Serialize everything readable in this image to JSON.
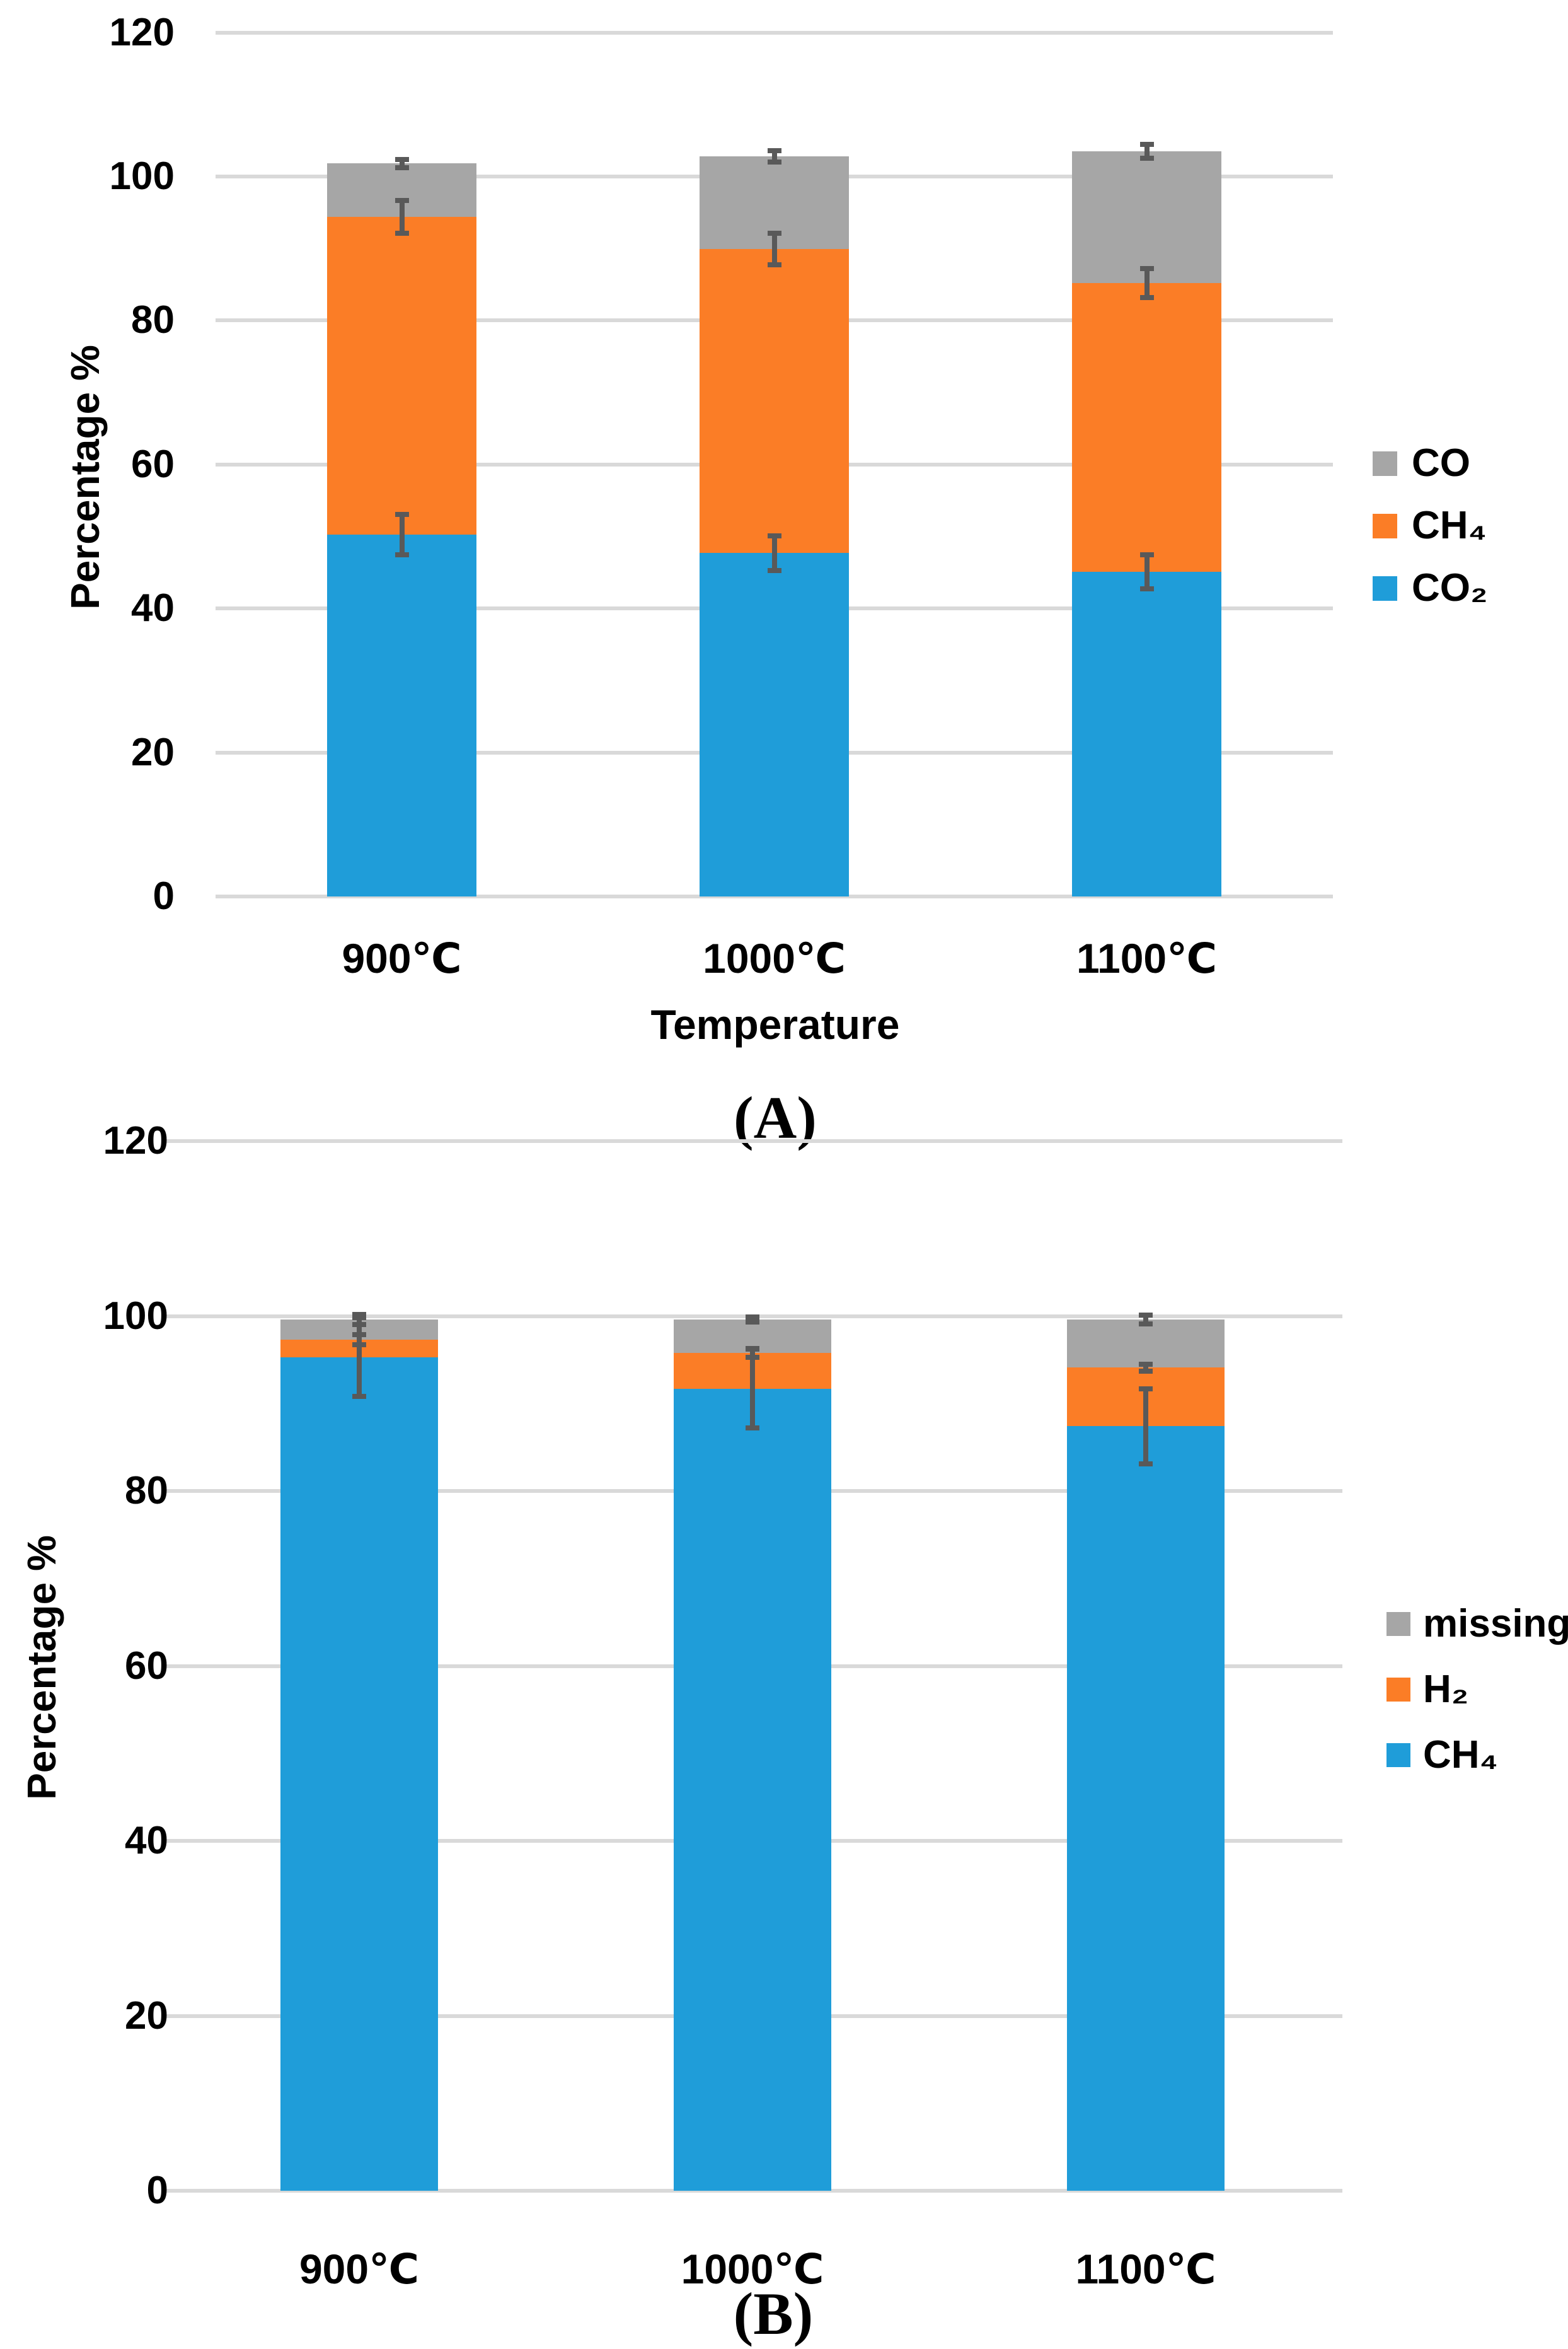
{
  "figure": {
    "background": "#ffffff",
    "text_color": "#000000",
    "gridline_color": "#d9d9d9",
    "error_bar_color": "#595959"
  },
  "chart_data": [
    {
      "type": "bar",
      "stacked": true,
      "panel_label": "(A)",
      "y_axis_title": "Percentage %",
      "x_axis_title": "Temperature",
      "categories": [
        "900℃",
        "1000℃",
        "1100℃"
      ],
      "y_ticks": [
        120,
        100,
        80,
        60,
        40,
        20,
        0
      ],
      "ylim": [
        0,
        120
      ],
      "grid": true,
      "legend_position": "right",
      "series": [
        {
          "name": "CO₂",
          "color": "#1F9DD9",
          "values": [
            50.3,
            47.7,
            45.1
          ],
          "errors": [
            2.8,
            2.4,
            2.4
          ]
        },
        {
          "name": "CH₄",
          "color": "#FB7D26",
          "values": [
            44.1,
            42.2,
            40.1
          ],
          "errors": [
            2.3,
            2.2,
            2.0
          ]
        },
        {
          "name": "CO",
          "color": "#A6A6A6",
          "values": [
            7.4,
            12.9,
            18.3
          ],
          "errors": [
            0.6,
            0.8,
            1.0
          ]
        }
      ],
      "legend": [
        {
          "label": "CO",
          "color": "#A6A6A6"
        },
        {
          "label": "CH₄",
          "color": "#FB7D26"
        },
        {
          "label": "CO₂",
          "color": "#1F9DD9"
        }
      ]
    },
    {
      "type": "bar",
      "stacked": true,
      "panel_label": "(B)",
      "y_axis_title": "Percentage %",
      "x_axis_title": "",
      "categories": [
        "900℃",
        "1000℃",
        "1100℃"
      ],
      "y_ticks": [
        120,
        100,
        80,
        60,
        40,
        20,
        0
      ],
      "ylim": [
        0,
        120
      ],
      "grid": true,
      "legend_position": "right",
      "series": [
        {
          "name": "CH₄",
          "color": "#1F9DD9",
          "values": [
            95.3,
            91.7,
            87.4
          ],
          "errors": [
            4.5,
            4.5,
            4.3
          ]
        },
        {
          "name": "H₂",
          "color": "#FB7D26",
          "values": [
            2.0,
            4.1,
            6.7
          ],
          "errors": [
            0.6,
            0.5,
            0.4
          ]
        },
        {
          "name": "missing",
          "color": "#A6A6A6",
          "values": [
            2.3,
            3.8,
            5.5
          ],
          "errors": [
            0.6,
            0.3,
            0.5
          ]
        }
      ],
      "legend": [
        {
          "label": "missing",
          "color": "#A6A6A6"
        },
        {
          "label": "H₂",
          "color": "#FB7D26"
        },
        {
          "label": "CH₄",
          "color": "#1F9DD9"
        }
      ]
    }
  ]
}
